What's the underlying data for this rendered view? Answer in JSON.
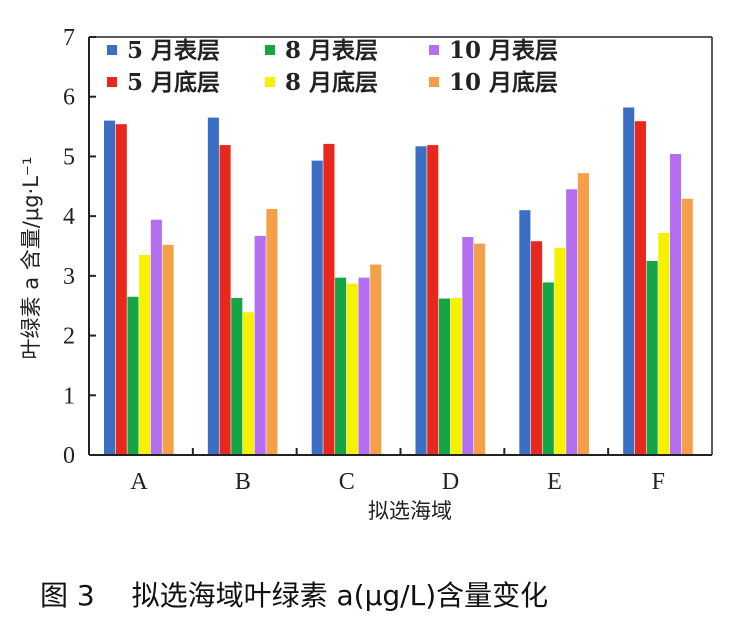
{
  "chart_data": {
    "type": "bar",
    "categories": [
      "A",
      "B",
      "C",
      "D",
      "E",
      "F"
    ],
    "series": [
      {
        "name": "5 月表层",
        "color": "#3b6fc6",
        "values": [
          5.6,
          5.65,
          4.93,
          5.17,
          4.1,
          5.82
        ]
      },
      {
        "name": "5 月底层",
        "color": "#e8281c",
        "values": [
          5.54,
          5.19,
          5.21,
          5.19,
          3.58,
          5.59
        ]
      },
      {
        "name": "8 月表层",
        "color": "#16a545",
        "values": [
          2.65,
          2.63,
          2.97,
          2.62,
          2.89,
          3.25
        ]
      },
      {
        "name": "8 月底层",
        "color": "#f6f100",
        "values": [
          3.35,
          2.39,
          2.87,
          2.63,
          3.47,
          3.72
        ]
      },
      {
        "name": "10 月表层",
        "color": "#b46ef0",
        "values": [
          3.94,
          3.67,
          2.97,
          3.65,
          4.45,
          5.04
        ]
      },
      {
        "name": "10 月底层",
        "color": "#f5a049",
        "values": [
          3.52,
          4.12,
          3.19,
          3.54,
          4.72,
          4.29
        ]
      }
    ],
    "ylim": [
      0,
      7
    ],
    "yticks": [
      "0",
      "1",
      "2",
      "3",
      "4",
      "5",
      "6",
      "7"
    ],
    "ylabel": "叶绿素 a 含量/μg·L⁻¹",
    "xlabel": "拟选海域",
    "legend_position": "top",
    "grid": false
  },
  "caption": "图 3　 拟选海域叶绿素 a(μg/L)含量变化"
}
